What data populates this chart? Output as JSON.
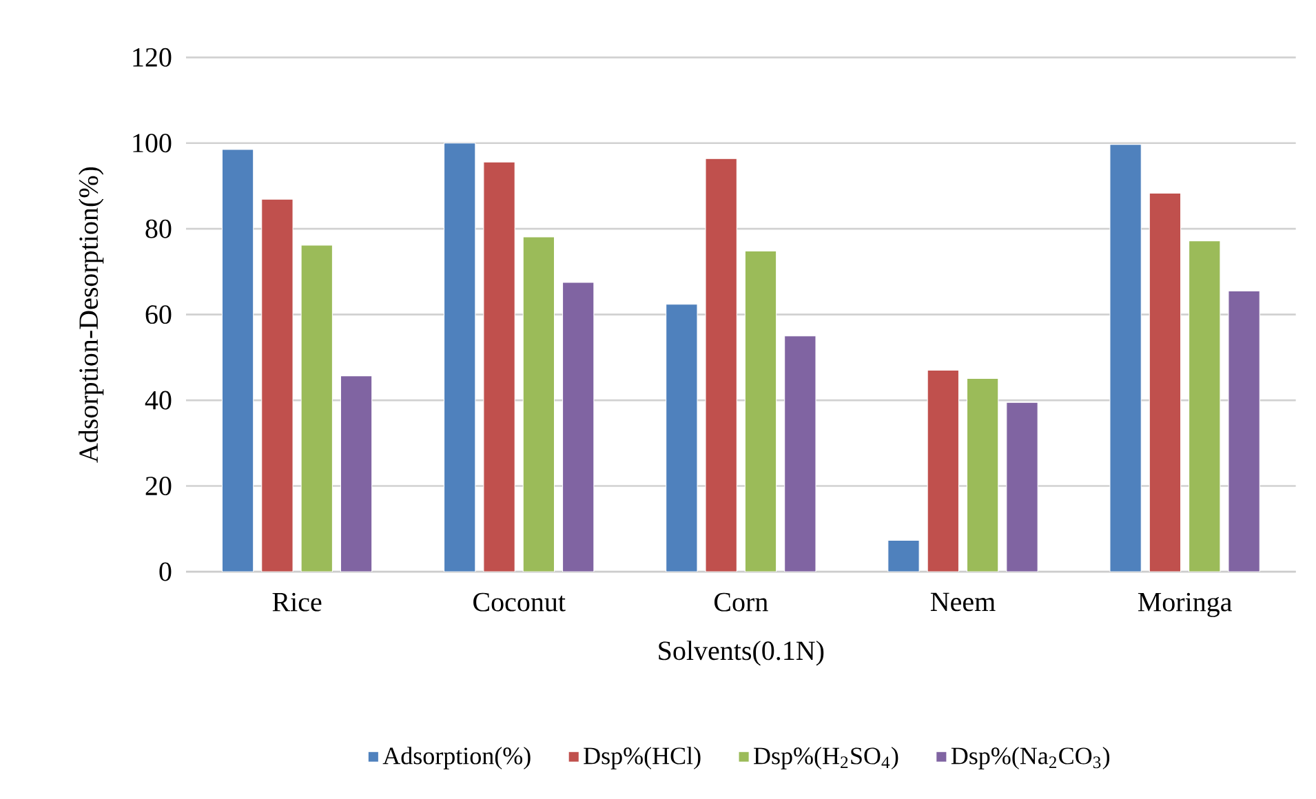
{
  "chart_data": {
    "type": "bar",
    "xlabel": "Solvents(0.1N)",
    "ylabel": "Adsorption-Desorption(%)",
    "categories": [
      "Rice",
      "Coconut",
      "Corn",
      "Neem",
      "Moringa"
    ],
    "series": [
      {
        "name": "Adsorption(%)",
        "color": "#4f81bd",
        "values": [
          98.5,
          100,
          62.4,
          7.3,
          99.7
        ]
      },
      {
        "name": "Dsp%(HCl)",
        "color": "#c0504d",
        "values": [
          86.9,
          95.6,
          96.4,
          47.0,
          88.3
        ]
      },
      {
        "name": "Dsp%(H$_{2}$SO$_{4}$)",
        "color": "#9bbb59",
        "values": [
          76.2,
          78.1,
          74.8,
          45.1,
          77.2
        ]
      },
      {
        "name": "Dsp%(Na$_{2}$CO$_{3}$)",
        "color": "#8064a2",
        "values": [
          45.7,
          67.5,
          55.0,
          39.5,
          65.5
        ]
      }
    ],
    "ylim": [
      0,
      120
    ],
    "yticks": [
      0,
      20,
      40,
      60,
      80,
      100,
      120
    ],
    "grid": "y",
    "legend": "bottom"
  }
}
